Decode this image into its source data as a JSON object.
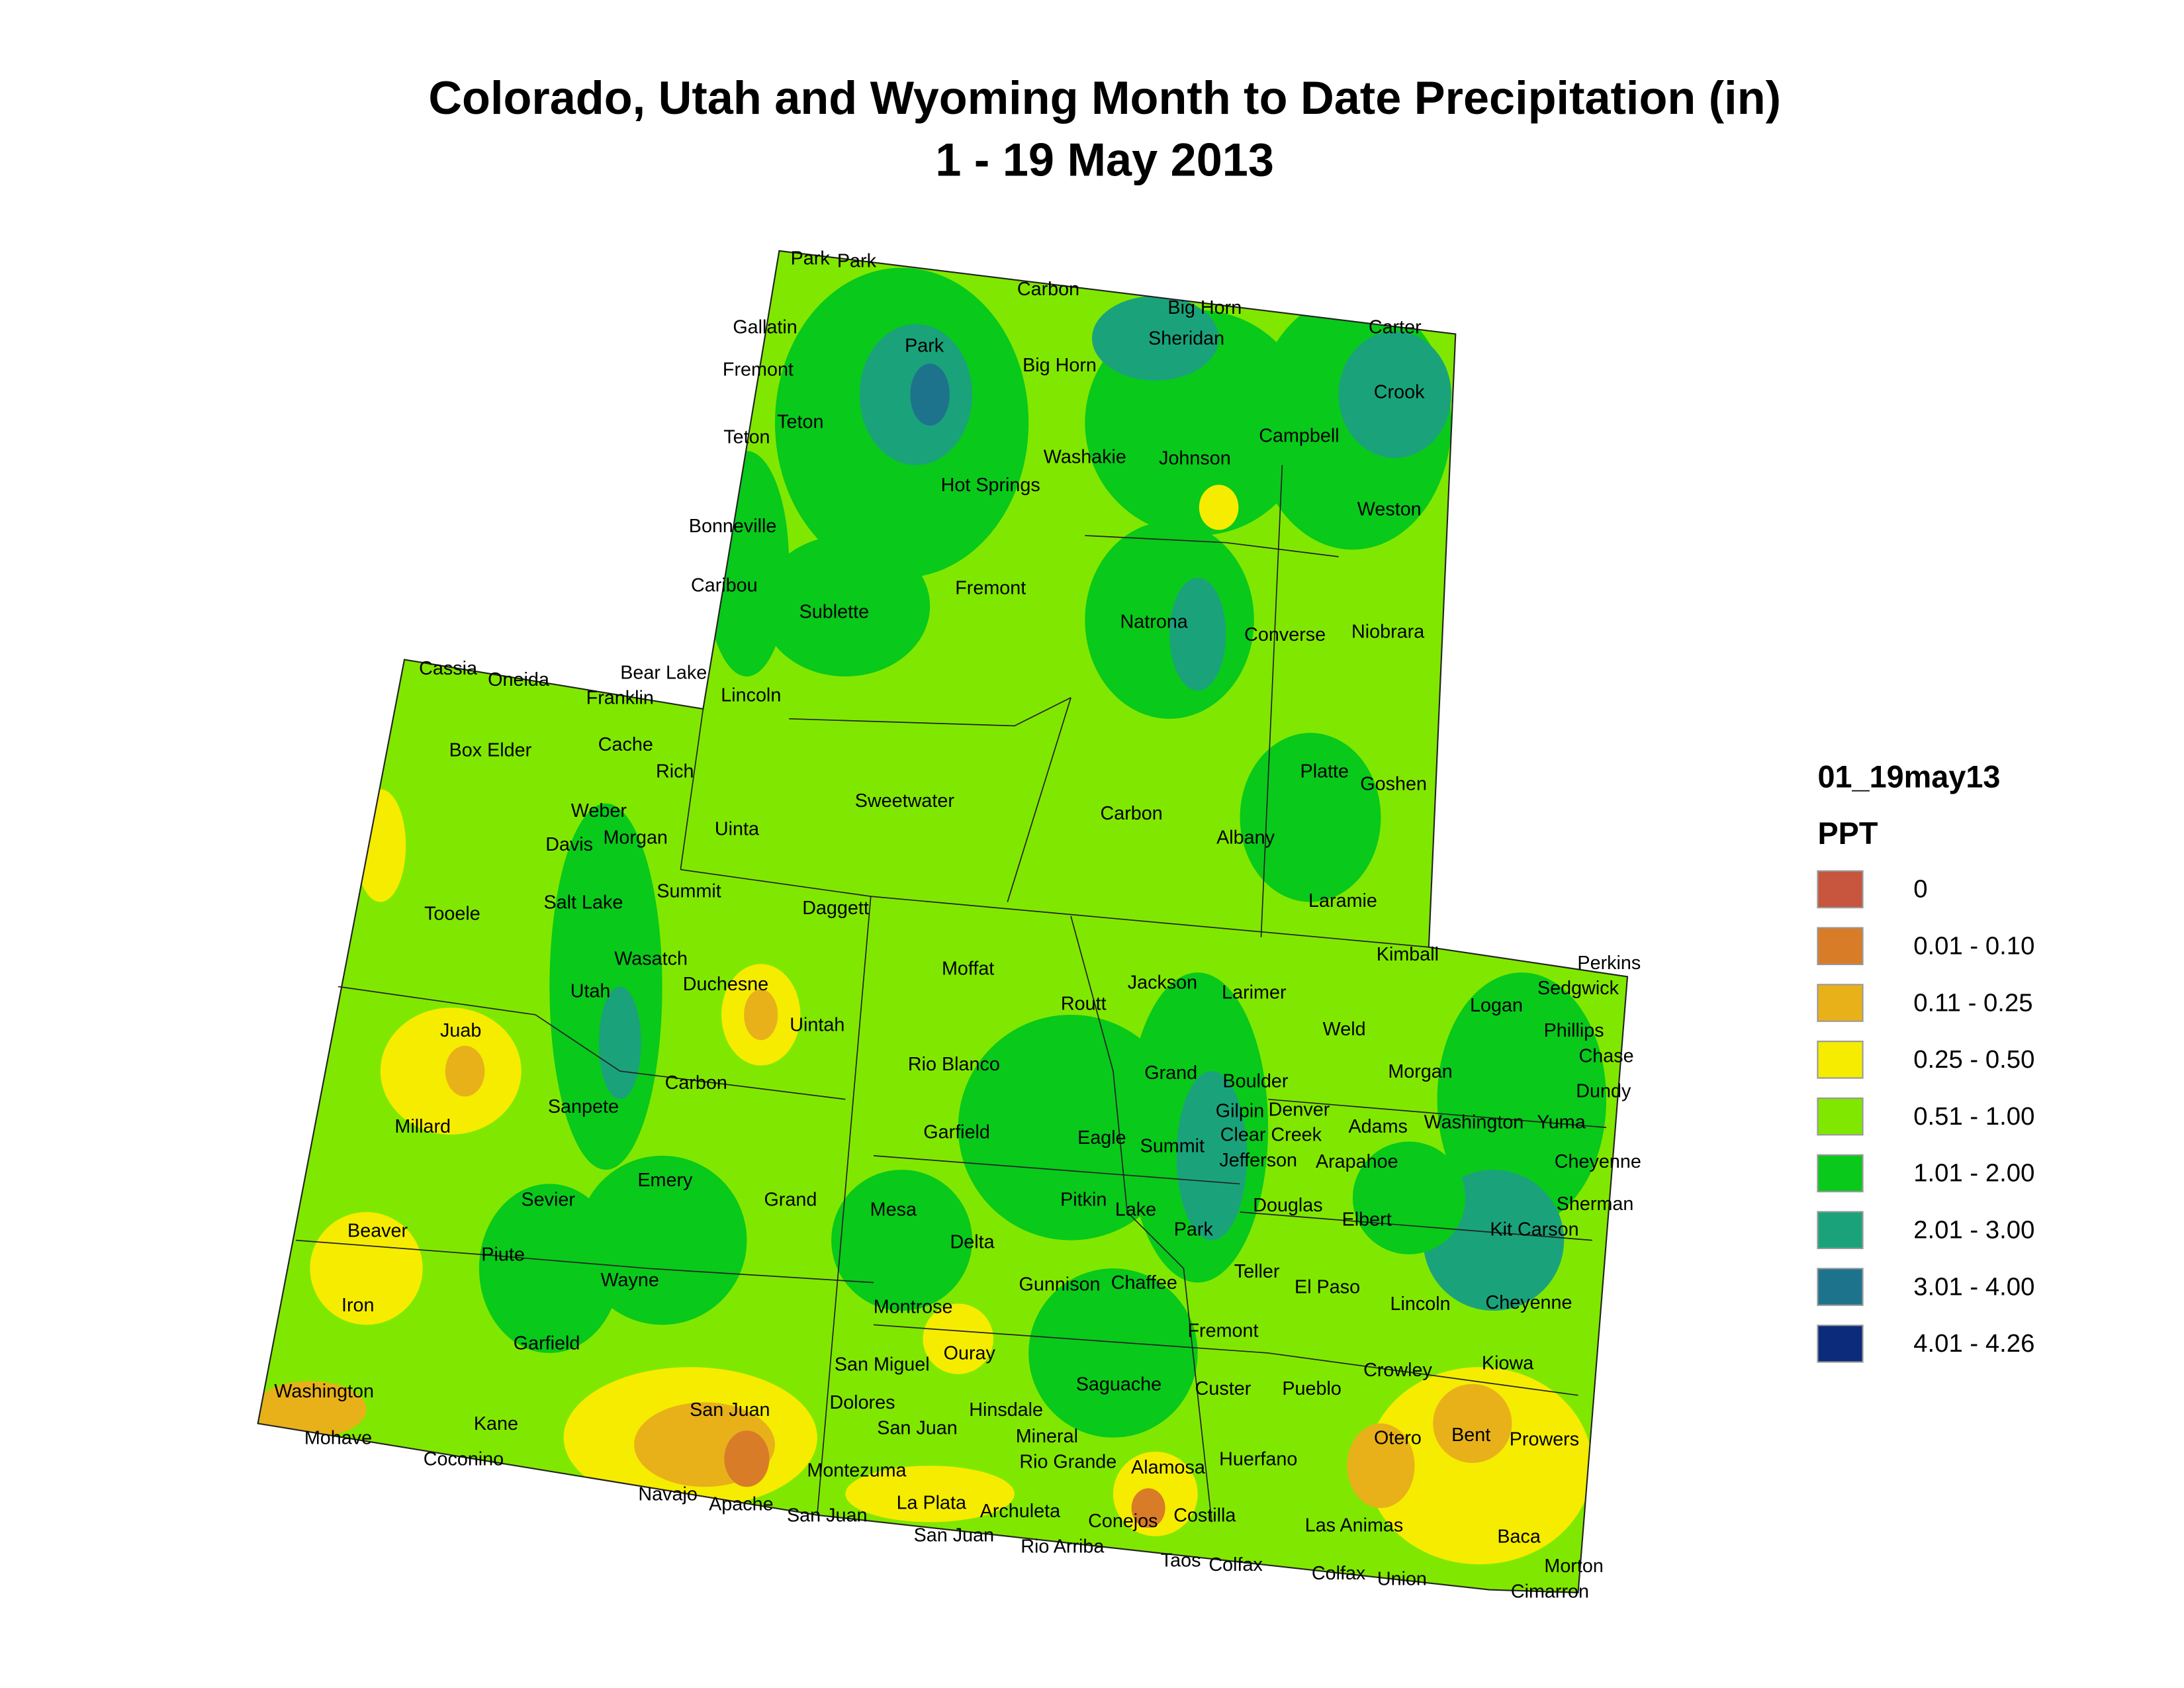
{
  "title": "Colorado, Utah and Wyoming Month to Date Precipitation (in)",
  "subtitle": "1 - 19 May 2013",
  "legend": {
    "title": "01_19may13",
    "subtitle": "PPT",
    "items": [
      {
        "label": "0",
        "color": "#c8553d"
      },
      {
        "label": "0.01 - 0.10",
        "color": "#d97c28"
      },
      {
        "label": "0.11 - 0.25",
        "color": "#e8b11a"
      },
      {
        "label": "0.25 - 0.50",
        "color": "#f6ec00"
      },
      {
        "label": "0.51 - 1.00",
        "color": "#80e800"
      },
      {
        "label": "1.01 - 2.00",
        "color": "#09c91b"
      },
      {
        "label": "2.01 - 3.00",
        "color": "#1aa37a"
      },
      {
        "label": "3.01 - 4.00",
        "color": "#1d738c"
      },
      {
        "label": "4.01 - 4.26",
        "color": "#0c2b7a"
      }
    ]
  },
  "map": {
    "labels": [
      "Park",
      "Park",
      "Carbon",
      "Big Horn",
      "Gallatin",
      "Carter",
      "Sheridan",
      "Park",
      "Fremont",
      "Big Horn",
      "Crook",
      "Teton",
      "Teton",
      "Washakie",
      "Johnson",
      "Campbell",
      "Hot Springs",
      "Weston",
      "Bonneville",
      "Caribou",
      "Fremont",
      "Sublette",
      "Natrona",
      "Converse",
      "Niobrara",
      "Cassia",
      "Oneida",
      "Bear Lake",
      "Franklin",
      "Lincoln",
      "Box Elder",
      "Cache",
      "Rich",
      "Platte",
      "Goshen",
      "Sweetwater",
      "Weber",
      "Carbon",
      "Uinta",
      "Davis",
      "Morgan",
      "Albany",
      "Tooele",
      "Salt Lake",
      "Summit",
      "Daggett",
      "Laramie",
      "Kimball",
      "Perkins",
      "Wasatch",
      "Moffat",
      "Sedgwick",
      "Utah",
      "Duchesne",
      "Jackson",
      "Larimer",
      "Logan",
      "Routt",
      "Uintah",
      "Juab",
      "Phillips",
      "Weld",
      "Chase",
      "Rio Blanco",
      "Grand",
      "Morgan",
      "Carbon",
      "Boulder",
      "Dundy",
      "Sanpete",
      "Gilpin",
      "Denver",
      "Millard",
      "Adams",
      "Washington",
      "Yuma",
      "Garfield",
      "Eagle",
      "Clear Creek",
      "Summit",
      "Jefferson",
      "Arapahoe",
      "Cheyenne",
      "Emery",
      "Sevier",
      "Grand",
      "Pitkin",
      "Mesa",
      "Lake",
      "Douglas",
      "Sherman",
      "Elbert",
      "Beaver",
      "Kit Carson",
      "Park",
      "Delta",
      "Piute",
      "Wayne",
      "Gunnison",
      "Chaffee",
      "Teller",
      "El Paso",
      "Iron",
      "Lincoln",
      "Cheyenne",
      "Montrose",
      "Fremont",
      "Garfield",
      "Ouray",
      "San Miguel",
      "Kiowa",
      "Crowley",
      "Washington",
      "Saguache",
      "Custer",
      "Pueblo",
      "Dolores",
      "Hinsdale",
      "San Juan",
      "Kane",
      "San Juan",
      "Bent",
      "Otero",
      "Prowers",
      "Mohave",
      "Mineral",
      "Coconino",
      "Rio Grande",
      "Alamosa",
      "Huerfano",
      "Montezuma",
      "Navajo",
      "Apache",
      "San Juan",
      "La Plata",
      "Archuleta",
      "Conejos",
      "Costilla",
      "Las Animas",
      "San Juan",
      "Baca",
      "Rio Arriba",
      "Taos",
      "Colfax",
      "Colfax",
      "Union",
      "Morton",
      "Cimarron"
    ]
  }
}
